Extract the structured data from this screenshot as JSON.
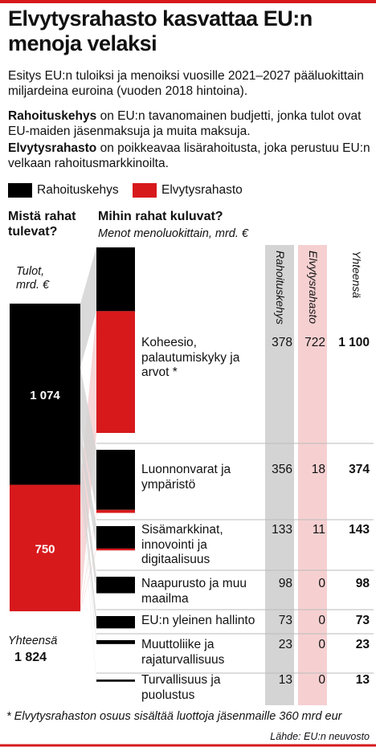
{
  "chart_data": {
    "type": "flow_bar",
    "title": "Elvytysrahasto kasvattaa EU:n menoja velaksi",
    "subtitle": "Esitys EU:n tuloiksi ja menoiksi vuosille 2021–2027 pääluokittain miljardeina euroina (vuoden 2018 hintoina).",
    "notes": [
      {
        "term": "Rahoituskehys",
        "text": "on EU:n tavanomainen budjetti, jonka tulot ovat EU-maiden jäsenmaksuja ja muita maksuja."
      },
      {
        "term": "Elvytysrahasto",
        "text": "on poikkeavaa lisärahoitusta, joka perustuu EU:n velkaan rahoitusmarkkinoilta."
      }
    ],
    "income": {
      "heading": "Mistä rahat tulevat?",
      "unit_label": "Tulot, mrd. €",
      "values": [
        1074,
        750
      ],
      "value_labels": [
        "1 074",
        "750"
      ],
      "total_label": "Yhteensä",
      "total": 1824,
      "total_value_label": "1 824"
    },
    "expenses": {
      "heading": "Mihin rahat kuluvat?",
      "unit_label": "Menot menoluokittain, mrd. €",
      "total_header": "Yhteensä",
      "categories": [
        "Koheesio, palautumiskyky ja arvot *",
        "Luonnonvarat ja ympäristö",
        "Sisämarkkinat, innovointi ja digitaalisuus",
        "Naapurusto ja muu maailma",
        "EU:n yleinen hallinto",
        "Muuttoliike ja rajaturvallisuus",
        "Turvallisuus ja puolustus"
      ],
      "series": [
        {
          "name": "Rahoituskehys",
          "color": "#000000",
          "column_color": "#d4d4d4",
          "values": [
            378,
            356,
            133,
            98,
            73,
            23,
            13
          ]
        },
        {
          "name": "Elvytysrahasto",
          "color": "#d7191c",
          "column_color": "#f6d0d1",
          "values": [
            722,
            18,
            11,
            0,
            0,
            0,
            0
          ]
        }
      ],
      "totals": [
        1100,
        374,
        143,
        98,
        73,
        23,
        13
      ],
      "total_labels": [
        "1 100",
        "374",
        "143",
        "98",
        "73",
        "23",
        "13"
      ]
    },
    "footnote": "* Elvytysrahaston osuus sisältää luottoja jäsenmaille 360 mrd eur",
    "source": "Lähde: EU:n neuvosto"
  }
}
